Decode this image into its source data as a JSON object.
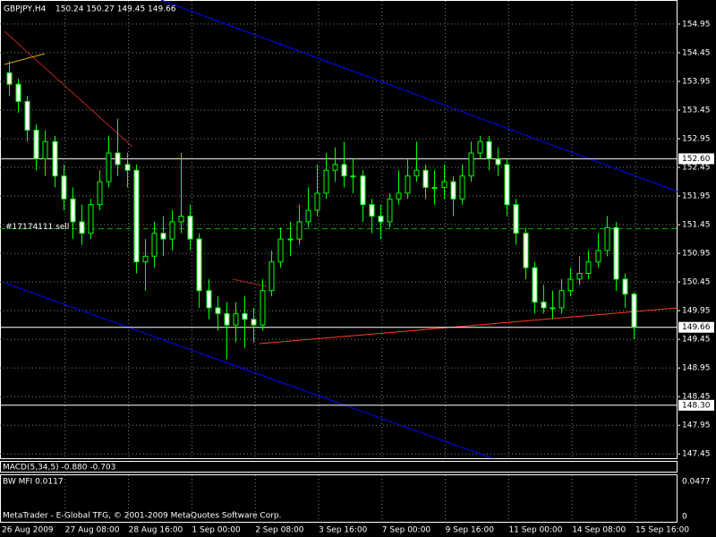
{
  "chart_data": {
    "type": "candlestick",
    "title": "GBPJPY,H4",
    "quote": "150.24 150.27 149.45 149.66",
    "ylim": [
      147.36,
      155.37
    ],
    "yticks": [
      154.95,
      154.45,
      153.95,
      153.45,
      152.95,
      152.45,
      151.95,
      151.45,
      150.95,
      150.45,
      149.95,
      149.45,
      148.95,
      148.45,
      147.95,
      147.45
    ],
    "grid": true,
    "up_color": "#00ff00",
    "x_labels": [
      "26 Aug 2009",
      "27 Aug 08:00",
      "28 Aug 16:00",
      "1 Sep 00:00",
      "2 Sep 08:00",
      "3 Sep 16:00",
      "7 Sep 00:00",
      "9 Sep 16:00",
      "11 Sep 00:00",
      "14 Sep 08:00",
      "15 Sep 16:00"
    ],
    "open": [
      154.1,
      153.9,
      153.6,
      153.1,
      152.6,
      152.9,
      152.3,
      151.9,
      151.5,
      151.3,
      151.8,
      152.2,
      152.7,
      152.5,
      152.4,
      150.8,
      150.9,
      151.3,
      151.2,
      151.5,
      151.6,
      151.2,
      150.3,
      150.0,
      149.9,
      149.7,
      149.9,
      149.8,
      149.7,
      150.3,
      150.8,
      151.2,
      151.2,
      151.5,
      151.7,
      152.0,
      152.4,
      152.5,
      152.3,
      152.3,
      151.8,
      151.6,
      151.5,
      151.9,
      152.0,
      152.3,
      152.4,
      152.1,
      152.1,
      152.2,
      151.9,
      152.3,
      152.7,
      152.9,
      152.6,
      152.5,
      151.8,
      151.3,
      150.7,
      150.1,
      150.0,
      150.0,
      150.3,
      150.5,
      150.6,
      150.8,
      151.0,
      151.4,
      150.5,
      150.24
    ],
    "high": [
      154.3,
      154.0,
      153.7,
      153.2,
      153.1,
      153.0,
      152.5,
      152.1,
      151.8,
      151.9,
      152.4,
      153.0,
      153.3,
      152.7,
      152.5,
      151.2,
      151.5,
      151.6,
      151.7,
      152.7,
      151.8,
      151.3,
      150.5,
      150.2,
      150.1,
      150.1,
      150.2,
      150.0,
      150.5,
      151.0,
      151.4,
      151.5,
      151.8,
      152.1,
      152.5,
      152.7,
      152.8,
      152.9,
      152.6,
      152.4,
      151.9,
      151.8,
      152.0,
      152.4,
      152.6,
      152.9,
      152.5,
      152.4,
      152.5,
      152.3,
      152.5,
      152.9,
      153.0,
      153.0,
      152.8,
      152.6,
      151.9,
      151.4,
      150.8,
      150.4,
      150.3,
      150.5,
      150.7,
      150.9,
      151.0,
      151.3,
      151.6,
      151.5,
      150.6,
      150.27
    ],
    "low": [
      153.7,
      153.4,
      152.9,
      152.4,
      152.3,
      152.1,
      151.7,
      151.2,
      151.1,
      151.2,
      151.7,
      152.1,
      152.3,
      152.1,
      150.6,
      150.3,
      150.7,
      150.9,
      151.0,
      151.3,
      151.0,
      150.0,
      149.8,
      149.6,
      149.1,
      149.4,
      149.3,
      149.4,
      149.6,
      150.2,
      150.7,
      150.9,
      151.1,
      151.4,
      151.6,
      151.9,
      152.2,
      152.1,
      152.0,
      151.5,
      151.3,
      151.2,
      151.4,
      151.8,
      151.9,
      152.2,
      151.9,
      151.8,
      151.9,
      151.6,
      151.8,
      152.2,
      152.6,
      152.4,
      152.3,
      151.6,
      151.1,
      150.5,
      149.9,
      149.9,
      149.8,
      149.9,
      150.2,
      150.4,
      150.5,
      150.7,
      150.9,
      150.3,
      150.0,
      149.45
    ],
    "close": [
      153.9,
      153.6,
      153.1,
      152.6,
      152.9,
      152.3,
      151.9,
      151.5,
      151.3,
      151.8,
      152.2,
      152.7,
      152.5,
      152.4,
      150.8,
      150.9,
      151.3,
      151.2,
      151.5,
      151.6,
      151.2,
      150.3,
      150.0,
      149.9,
      149.7,
      149.9,
      149.8,
      149.7,
      150.3,
      150.8,
      151.2,
      151.2,
      151.5,
      151.7,
      152.0,
      152.4,
      152.5,
      152.3,
      152.3,
      151.8,
      151.6,
      151.5,
      151.9,
      152.0,
      152.3,
      152.4,
      152.1,
      152.1,
      152.2,
      151.9,
      152.3,
      152.7,
      152.9,
      152.6,
      152.5,
      151.8,
      151.3,
      150.7,
      150.1,
      150.0,
      150.0,
      150.3,
      150.5,
      150.6,
      150.8,
      151.0,
      151.4,
      150.5,
      150.24,
      149.66
    ],
    "levels": [
      {
        "value": 152.6,
        "label": "152.60"
      },
      {
        "value": 148.3,
        "label": "148.30"
      },
      149.66
    ],
    "order": {
      "label": "#17174111 sell",
      "price": 151.38
    },
    "macd_label": "MACD(5,34,5) -0.880 -0.703",
    "mfi_label": "BW MFI 0.0117",
    "mfi_ticks": [
      "0.0477",
      "0"
    ],
    "watermark": "MetaTrader - E-Global TFG, © 2001-2009 MetaQuotes Software Corp."
  }
}
